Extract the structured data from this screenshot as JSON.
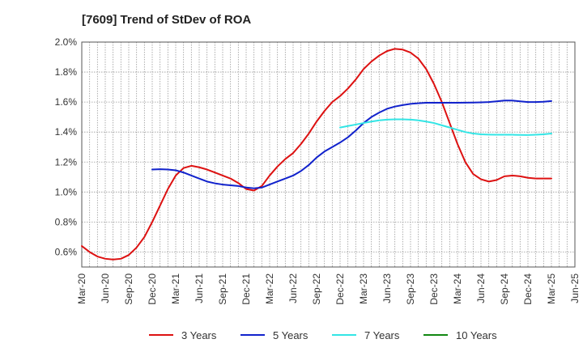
{
  "chart_data": {
    "type": "line",
    "title": "[7609]  Trend of StDev of ROA",
    "x_ticks": [
      "Mar-20",
      "Jun-20",
      "Sep-20",
      "Dec-20",
      "Mar-21",
      "Jun-21",
      "Sep-21",
      "Dec-21",
      "Mar-22",
      "Jun-22",
      "Sep-22",
      "Dec-22",
      "Mar-23",
      "Jun-23",
      "Sep-23",
      "Dec-23",
      "Mar-24",
      "Jun-24",
      "Sep-24",
      "Dec-24",
      "Mar-25",
      "Jun-25"
    ],
    "y_ticks": [
      0.6,
      0.8,
      1.0,
      1.2,
      1.4,
      1.6,
      1.8,
      2.0
    ],
    "y_tick_labels": [
      "0.6%",
      "0.8%",
      "1.0%",
      "1.2%",
      "1.4%",
      "1.6%",
      "1.8%",
      "2.0%"
    ],
    "ylim": [
      0.5,
      2.0
    ],
    "legend_position": "bottom",
    "grid": true,
    "series": [
      {
        "name": "3 Years",
        "color": "#dd1111",
        "points": [
          [
            "Mar-20",
            0.64
          ],
          [
            "Apr-20",
            0.6
          ],
          [
            "May-20",
            0.57
          ],
          [
            "Jun-20",
            0.555
          ],
          [
            "Jul-20",
            0.55
          ],
          [
            "Aug-20",
            0.555
          ],
          [
            "Sep-20",
            0.58
          ],
          [
            "Oct-20",
            0.63
          ],
          [
            "Nov-20",
            0.7
          ],
          [
            "Dec-20",
            0.8
          ],
          [
            "Jan-21",
            0.91
          ],
          [
            "Feb-21",
            1.02
          ],
          [
            "Mar-21",
            1.11
          ],
          [
            "Apr-21",
            1.16
          ],
          [
            "May-21",
            1.175
          ],
          [
            "Jun-21",
            1.165
          ],
          [
            "Jul-21",
            1.15
          ],
          [
            "Aug-21",
            1.13
          ],
          [
            "Sep-21",
            1.11
          ],
          [
            "Oct-21",
            1.09
          ],
          [
            "Nov-21",
            1.06
          ],
          [
            "Dec-21",
            1.02
          ],
          [
            "Jan-22",
            1.01
          ],
          [
            "Feb-22",
            1.04
          ],
          [
            "Mar-22",
            1.11
          ],
          [
            "Apr-22",
            1.17
          ],
          [
            "May-22",
            1.22
          ],
          [
            "Jun-22",
            1.26
          ],
          [
            "Jul-22",
            1.32
          ],
          [
            "Aug-22",
            1.39
          ],
          [
            "Sep-22",
            1.47
          ],
          [
            "Oct-22",
            1.54
          ],
          [
            "Nov-22",
            1.6
          ],
          [
            "Dec-22",
            1.64
          ],
          [
            "Jan-23",
            1.69
          ],
          [
            "Feb-23",
            1.75
          ],
          [
            "Mar-23",
            1.82
          ],
          [
            "Apr-23",
            1.87
          ],
          [
            "May-23",
            1.91
          ],
          [
            "Jun-23",
            1.94
          ],
          [
            "Jul-23",
            1.955
          ],
          [
            "Aug-23",
            1.95
          ],
          [
            "Sep-23",
            1.93
          ],
          [
            "Oct-23",
            1.89
          ],
          [
            "Nov-23",
            1.82
          ],
          [
            "Dec-23",
            1.72
          ],
          [
            "Jan-24",
            1.6
          ],
          [
            "Feb-24",
            1.46
          ],
          [
            "Mar-24",
            1.32
          ],
          [
            "Apr-24",
            1.2
          ],
          [
            "May-24",
            1.12
          ],
          [
            "Jun-24",
            1.085
          ],
          [
            "Jul-24",
            1.07
          ],
          [
            "Aug-24",
            1.08
          ],
          [
            "Sep-24",
            1.105
          ],
          [
            "Oct-24",
            1.11
          ],
          [
            "Nov-24",
            1.105
          ],
          [
            "Dec-24",
            1.095
          ],
          [
            "Jan-25",
            1.09
          ],
          [
            "Feb-25",
            1.09
          ],
          [
            "Mar-25",
            1.09
          ]
        ]
      },
      {
        "name": "5 Years",
        "color": "#1122cc",
        "points": [
          [
            "Dec-20",
            1.15
          ],
          [
            "Jan-21",
            1.152
          ],
          [
            "Feb-21",
            1.15
          ],
          [
            "Mar-21",
            1.145
          ],
          [
            "Apr-21",
            1.13
          ],
          [
            "May-21",
            1.11
          ],
          [
            "Jun-21",
            1.09
          ],
          [
            "Jul-21",
            1.07
          ],
          [
            "Aug-21",
            1.058
          ],
          [
            "Sep-21",
            1.05
          ],
          [
            "Oct-21",
            1.045
          ],
          [
            "Nov-21",
            1.04
          ],
          [
            "Dec-21",
            1.03
          ],
          [
            "Jan-22",
            1.025
          ],
          [
            "Feb-22",
            1.03
          ],
          [
            "Mar-22",
            1.05
          ],
          [
            "Apr-22",
            1.07
          ],
          [
            "May-22",
            1.09
          ],
          [
            "Jun-22",
            1.11
          ],
          [
            "Jul-22",
            1.14
          ],
          [
            "Aug-22",
            1.18
          ],
          [
            "Sep-22",
            1.23
          ],
          [
            "Oct-22",
            1.27
          ],
          [
            "Nov-22",
            1.3
          ],
          [
            "Dec-22",
            1.33
          ],
          [
            "Jan-23",
            1.365
          ],
          [
            "Feb-23",
            1.41
          ],
          [
            "Mar-23",
            1.46
          ],
          [
            "Apr-23",
            1.5
          ],
          [
            "May-23",
            1.53
          ],
          [
            "Jun-23",
            1.555
          ],
          [
            "Jul-23",
            1.57
          ],
          [
            "Aug-23",
            1.58
          ],
          [
            "Sep-23",
            1.588
          ],
          [
            "Oct-23",
            1.592
          ],
          [
            "Nov-23",
            1.595
          ],
          [
            "Dec-23",
            1.595
          ],
          [
            "Jan-24",
            1.595
          ],
          [
            "Feb-24",
            1.595
          ],
          [
            "Mar-24",
            1.595
          ],
          [
            "Apr-24",
            1.596
          ],
          [
            "May-24",
            1.597
          ],
          [
            "Jun-24",
            1.598
          ],
          [
            "Jul-24",
            1.6
          ],
          [
            "Aug-24",
            1.605
          ],
          [
            "Sep-24",
            1.61
          ],
          [
            "Oct-24",
            1.61
          ],
          [
            "Nov-24",
            1.605
          ],
          [
            "Dec-24",
            1.6
          ],
          [
            "Jan-25",
            1.6
          ],
          [
            "Feb-25",
            1.602
          ],
          [
            "Mar-25",
            1.607
          ]
        ]
      },
      {
        "name": "7 Years",
        "color": "#33e5e5",
        "points": [
          [
            "Dec-22",
            1.43
          ],
          [
            "Jan-23",
            1.44
          ],
          [
            "Feb-23",
            1.45
          ],
          [
            "Mar-23",
            1.46
          ],
          [
            "Apr-23",
            1.47
          ],
          [
            "May-23",
            1.478
          ],
          [
            "Jun-23",
            1.483
          ],
          [
            "Jul-23",
            1.485
          ],
          [
            "Aug-23",
            1.485
          ],
          [
            "Sep-23",
            1.483
          ],
          [
            "Oct-23",
            1.478
          ],
          [
            "Nov-23",
            1.47
          ],
          [
            "Dec-23",
            1.46
          ],
          [
            "Jan-24",
            1.445
          ],
          [
            "Feb-24",
            1.43
          ],
          [
            "Mar-24",
            1.415
          ],
          [
            "Apr-24",
            1.4
          ],
          [
            "May-24",
            1.39
          ],
          [
            "Jun-24",
            1.385
          ],
          [
            "Jul-24",
            1.383
          ],
          [
            "Aug-24",
            1.382
          ],
          [
            "Sep-24",
            1.382
          ],
          [
            "Oct-24",
            1.382
          ],
          [
            "Nov-24",
            1.381
          ],
          [
            "Dec-24",
            1.38
          ],
          [
            "Jan-25",
            1.382
          ],
          [
            "Feb-25",
            1.385
          ],
          [
            "Mar-25",
            1.39
          ]
        ]
      },
      {
        "name": "10 Years",
        "color": "#118811",
        "points": []
      }
    ]
  }
}
